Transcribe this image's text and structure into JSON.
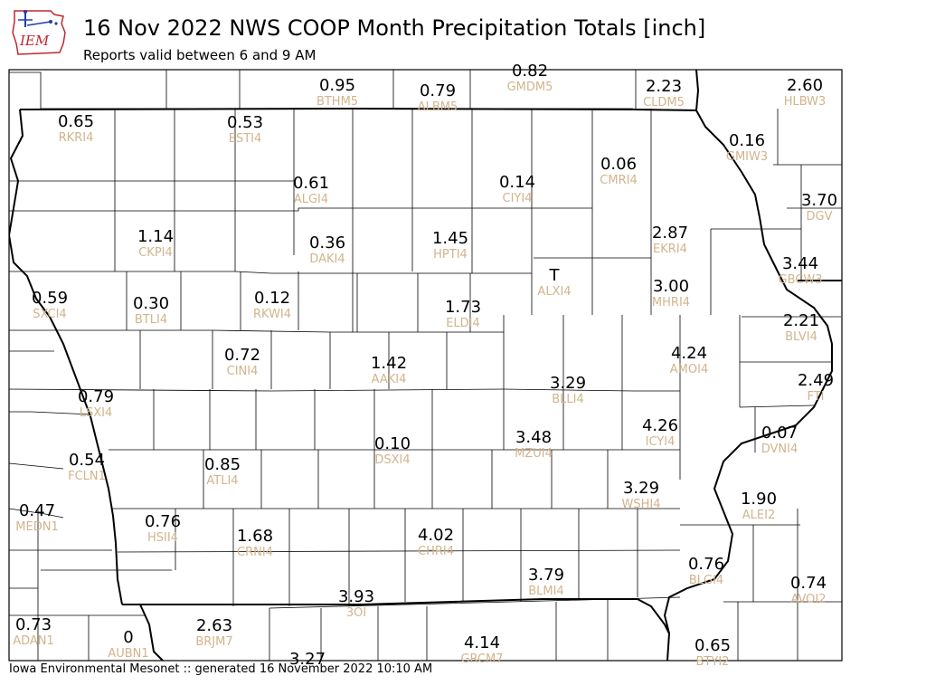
{
  "header": {
    "logo_text": "IEM",
    "title": "16 Nov 2022 NWS COOP Month Precipitation Totals [inch]",
    "subtitle": "Reports valid between 6 and 9 AM"
  },
  "footer": {
    "text": "Iowa Environmental Mesonet :: generated 16 November 2022 10:10 AM"
  },
  "colors": {
    "value_text": "#000000",
    "station_text": "#d2b48c",
    "county_line": "#000000",
    "logo_blue": "#1f3ea8",
    "logo_red": "#c0282d"
  },
  "stations": [
    {
      "value": "0.95",
      "id": "BTHM5"
    },
    {
      "value": "0.79",
      "id": "ALBM5"
    },
    {
      "value": "0.82",
      "id": "GMDM5"
    },
    {
      "value": "2.23",
      "id": "CLDM5"
    },
    {
      "value": "2.60",
      "id": "HLBW3"
    },
    {
      "value": "0.65",
      "id": "RKRI4"
    },
    {
      "value": "0.53",
      "id": "ESTI4"
    },
    {
      "value": "0.16",
      "id": "GMIW3"
    },
    {
      "value": "0.61",
      "id": "ALGI4"
    },
    {
      "value": "0.14",
      "id": "CIYI4"
    },
    {
      "value": "0.06",
      "id": "CMRI4"
    },
    {
      "value": "3.70",
      "id": "DGV"
    },
    {
      "value": "1.14",
      "id": "CKPI4"
    },
    {
      "value": "0.36",
      "id": "DAKI4"
    },
    {
      "value": "1.45",
      "id": "HPTI4"
    },
    {
      "value": "2.87",
      "id": "EKRI4"
    },
    {
      "value": "3.44",
      "id": "GBCW3"
    },
    {
      "value": "T",
      "id": "ALXI4"
    },
    {
      "value": "0.59",
      "id": "SXCI4"
    },
    {
      "value": "0.30",
      "id": "BTLI4"
    },
    {
      "value": "0.12",
      "id": "RKWI4"
    },
    {
      "value": "1.73",
      "id": "ELDI4"
    },
    {
      "value": "3.00",
      "id": "MHRI4"
    },
    {
      "value": "2.21",
      "id": "BLVI4"
    },
    {
      "value": "0.72",
      "id": "CINI4"
    },
    {
      "value": "1.42",
      "id": "AAKI4"
    },
    {
      "value": "4.24",
      "id": "AMOI4"
    },
    {
      "value": "2.49",
      "id": "FTI"
    },
    {
      "value": "0.79",
      "id": "LSXI4"
    },
    {
      "value": "3.29",
      "id": "BLLI4"
    },
    {
      "value": "4.26",
      "id": "ICYI4"
    },
    {
      "value": "0.07",
      "id": "DVNI4"
    },
    {
      "value": "0.54",
      "id": "FCLN1"
    },
    {
      "value": "0.85",
      "id": "ATLI4"
    },
    {
      "value": "0.10",
      "id": "DSXI4"
    },
    {
      "value": "3.48",
      "id": "MZUI4"
    },
    {
      "value": "3.29",
      "id": "WSHI4"
    },
    {
      "value": "1.90",
      "id": "ALEI2"
    },
    {
      "value": "0.47",
      "id": "MEDN1"
    },
    {
      "value": "0.76",
      "id": "HSII4"
    },
    {
      "value": "1.68",
      "id": "CRNI4"
    },
    {
      "value": "4.02",
      "id": "CHRI4"
    },
    {
      "value": "3.79",
      "id": "BLMI4"
    },
    {
      "value": "0.76",
      "id": "BLGI4"
    },
    {
      "value": "0.74",
      "id": "AVOI2"
    },
    {
      "value": "3.93",
      "id": "3OI"
    },
    {
      "value": "0.73",
      "id": "ADAN1"
    },
    {
      "value": "0",
      "id": "AUBN1"
    },
    {
      "value": "2.63",
      "id": "BRJM7"
    },
    {
      "value": "4.14",
      "id": "GRCM7"
    },
    {
      "value": "0.65",
      "id": "BTYI2"
    },
    {
      "value": "3.27",
      "id": ""
    }
  ]
}
